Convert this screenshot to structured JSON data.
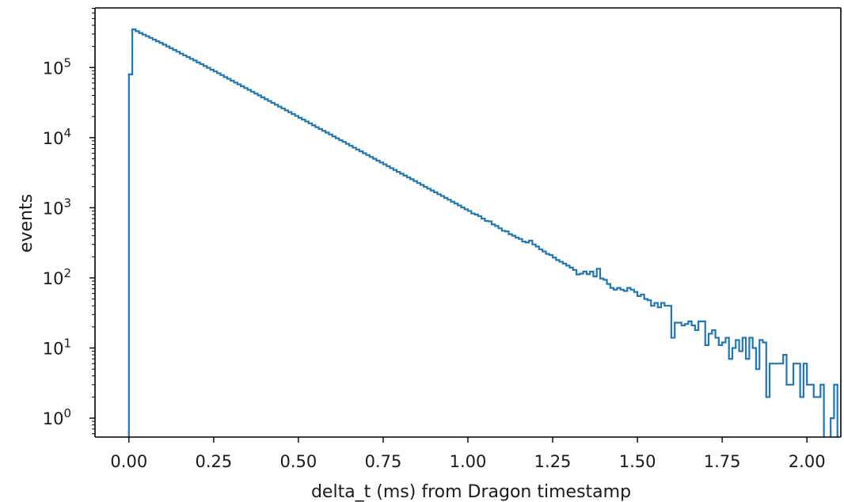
{
  "chart_data": {
    "type": "histogram",
    "xlabel": "delta_t (ms) from Dragon timestamp",
    "ylabel": "events",
    "xlim": [
      -0.1,
      2.1
    ],
    "ylim_log10": [
      -0.27,
      5.85
    ],
    "y_scale": "log",
    "x_ticks": [
      "0.00",
      "0.25",
      "0.50",
      "0.75",
      "1.00",
      "1.25",
      "1.50",
      "1.75",
      "2.00"
    ],
    "y_ticks": [
      {
        "base": "10",
        "exp": "0"
      },
      {
        "base": "10",
        "exp": "1"
      },
      {
        "base": "10",
        "exp": "2"
      },
      {
        "base": "10",
        "exp": "3"
      },
      {
        "base": "10",
        "exp": "4"
      },
      {
        "base": "10",
        "exp": "5"
      }
    ],
    "line_color": "#1f77b4",
    "bin_width": 0.01,
    "x_start": 0.0,
    "counts": [
      80000,
      350000,
      330000,
      310000,
      295000,
      280000,
      265000,
      250000,
      237000,
      225000,
      212000,
      200000,
      189000,
      178000,
      168000,
      158000,
      149000,
      141000,
      133000,
      126000,
      118000,
      112000,
      105000,
      99000,
      93000,
      88000,
      83000,
      78000,
      73000,
      69000,
      65000,
      61000,
      57600,
      54200,
      51000,
      48000,
      45200,
      42500,
      40000,
      37600,
      35400,
      33300,
      31300,
      29500,
      27700,
      26100,
      24500,
      23100,
      21700,
      20400,
      19200,
      18100,
      17000,
      16000,
      15000,
      14100,
      13300,
      12500,
      11800,
      11100,
      10400,
      9800,
      9200,
      8700,
      8150,
      7670,
      7210,
      6780,
      6380,
      6000,
      5650,
      5310,
      5000,
      4700,
      4420,
      4160,
      3910,
      3680,
      3460,
      3250,
      3060,
      2880,
      2710,
      2550,
      2400,
      2250,
      2120,
      1990,
      1870,
      1760,
      1660,
      1560,
      1470,
      1380,
      1300,
      1220,
      1150,
      1080,
      1010,
      950,
      900,
      830,
      800,
      760,
      700,
      650,
      640,
      580,
      550,
      510,
      470,
      460,
      420,
      400,
      375,
      360,
      330,
      320,
      340,
      300,
      280,
      255,
      238,
      220,
      212,
      195,
      180,
      170,
      160,
      150,
      140,
      130,
      112,
      115,
      123,
      113,
      123,
      105,
      135,
      98,
      94,
      82,
      72,
      68,
      72,
      68,
      65,
      72,
      68,
      63,
      55,
      58,
      50,
      48,
      40,
      44,
      38,
      44,
      40,
      40,
      14,
      23,
      23,
      21,
      22,
      24,
      21,
      18,
      24,
      24,
      11,
      16,
      18,
      14,
      11,
      12,
      14,
      7,
      10,
      13,
      9,
      14,
      7,
      14,
      10,
      5,
      13,
      12,
      2,
      6,
      6,
      6,
      6,
      8,
      3,
      3,
      6,
      6,
      2,
      6,
      3,
      3,
      2,
      2,
      3,
      0.2,
      0.2,
      1,
      3,
      0.2
    ]
  }
}
